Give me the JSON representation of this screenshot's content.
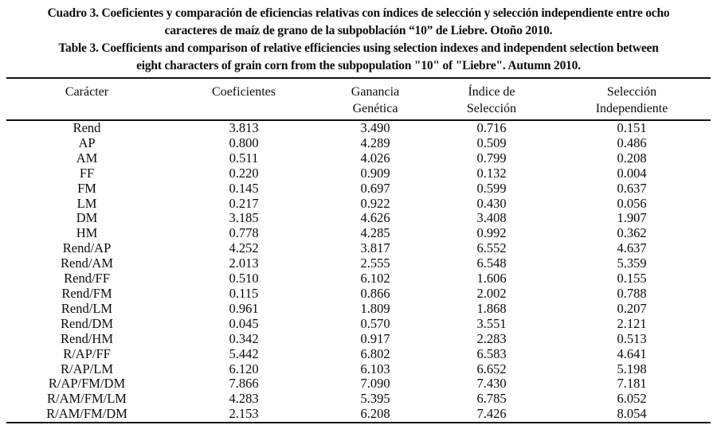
{
  "page": {
    "background": "#ffffff",
    "text_color": "#0c0c0c",
    "rule_color": "#111111"
  },
  "captions": {
    "spanish_line1": "Cuadro 3. Coeficientes y comparación de eficiencias relativas con índices de selección y selección independiente entre ocho",
    "spanish_line2": "caracteres de maíz de grano de la subpoblación “10” de Liebre. Otoño 2010.",
    "english_line1": "Table 3. Coefficients and comparison of relative efficiencies using selection indexes and independent selection between",
    "english_line2": "eight characters of grain corn from the subpopulation \"10\" of \"Liebre\". Autumn 2010."
  },
  "table": {
    "headers": [
      {
        "line1": "Carácter",
        "line2": ""
      },
      {
        "line1": "Coeficientes",
        "line2": ""
      },
      {
        "line1": "Ganancia",
        "line2": "Genética"
      },
      {
        "line1": "Índice de",
        "line2": "Selección"
      },
      {
        "line1": "Selección",
        "line2": "Independiente"
      }
    ],
    "rows": [
      [
        "Rend",
        "3.813",
        "3.490",
        "0.716",
        "0.151"
      ],
      [
        "AP",
        "0.800",
        "4.289",
        "0.509",
        "0.486"
      ],
      [
        "AM",
        "0.511",
        "4.026",
        "0.799",
        "0.208"
      ],
      [
        "FF",
        "0.220",
        "0.909",
        "0.132",
        "0.004"
      ],
      [
        "FM",
        "0.145",
        "0.697",
        "0.599",
        "0.637"
      ],
      [
        "LM",
        "0.217",
        "0.922",
        "0.430",
        "0.056"
      ],
      [
        "DM",
        "3.185",
        "4.626",
        "3.408",
        "1.907"
      ],
      [
        "HM",
        "0.778",
        "4.285",
        "0.992",
        "0.362"
      ],
      [
        "Rend/AP",
        "4.252",
        "3.817",
        "6.552",
        "4.637"
      ],
      [
        "Rend/AM",
        "2.013",
        "2.555",
        "6.548",
        "5.359"
      ],
      [
        "Rend/FF",
        "0.510",
        "6.102",
        "1.606",
        "0.155"
      ],
      [
        "Rend/FM",
        "0.115",
        "0.866",
        "2.002",
        "0.788"
      ],
      [
        "Rend/LM",
        "0.961",
        "1.809",
        "1.868",
        "0.207"
      ],
      [
        "Rend/DM",
        "0.045",
        "0.570",
        "3.551",
        "2.121"
      ],
      [
        "Rend/HM",
        "0.342",
        "0.917",
        "2.283",
        "0.513"
      ],
      [
        "R/AP/FF",
        "5.442",
        "6.802",
        "6.583",
        "4.641"
      ],
      [
        "R/AP/LM",
        "6.120",
        "6.103",
        "6.652",
        "5.198"
      ],
      [
        "R/AP/FM/DM",
        "7.866",
        "7.090",
        "7.430",
        "7.181"
      ],
      [
        "R/AM/FM/LM",
        "4.283",
        "5.395",
        "6.785",
        "6.052"
      ],
      [
        "R/AM/FM/DM",
        "2.153",
        "6.208",
        "7.426",
        "8.054"
      ]
    ]
  }
}
